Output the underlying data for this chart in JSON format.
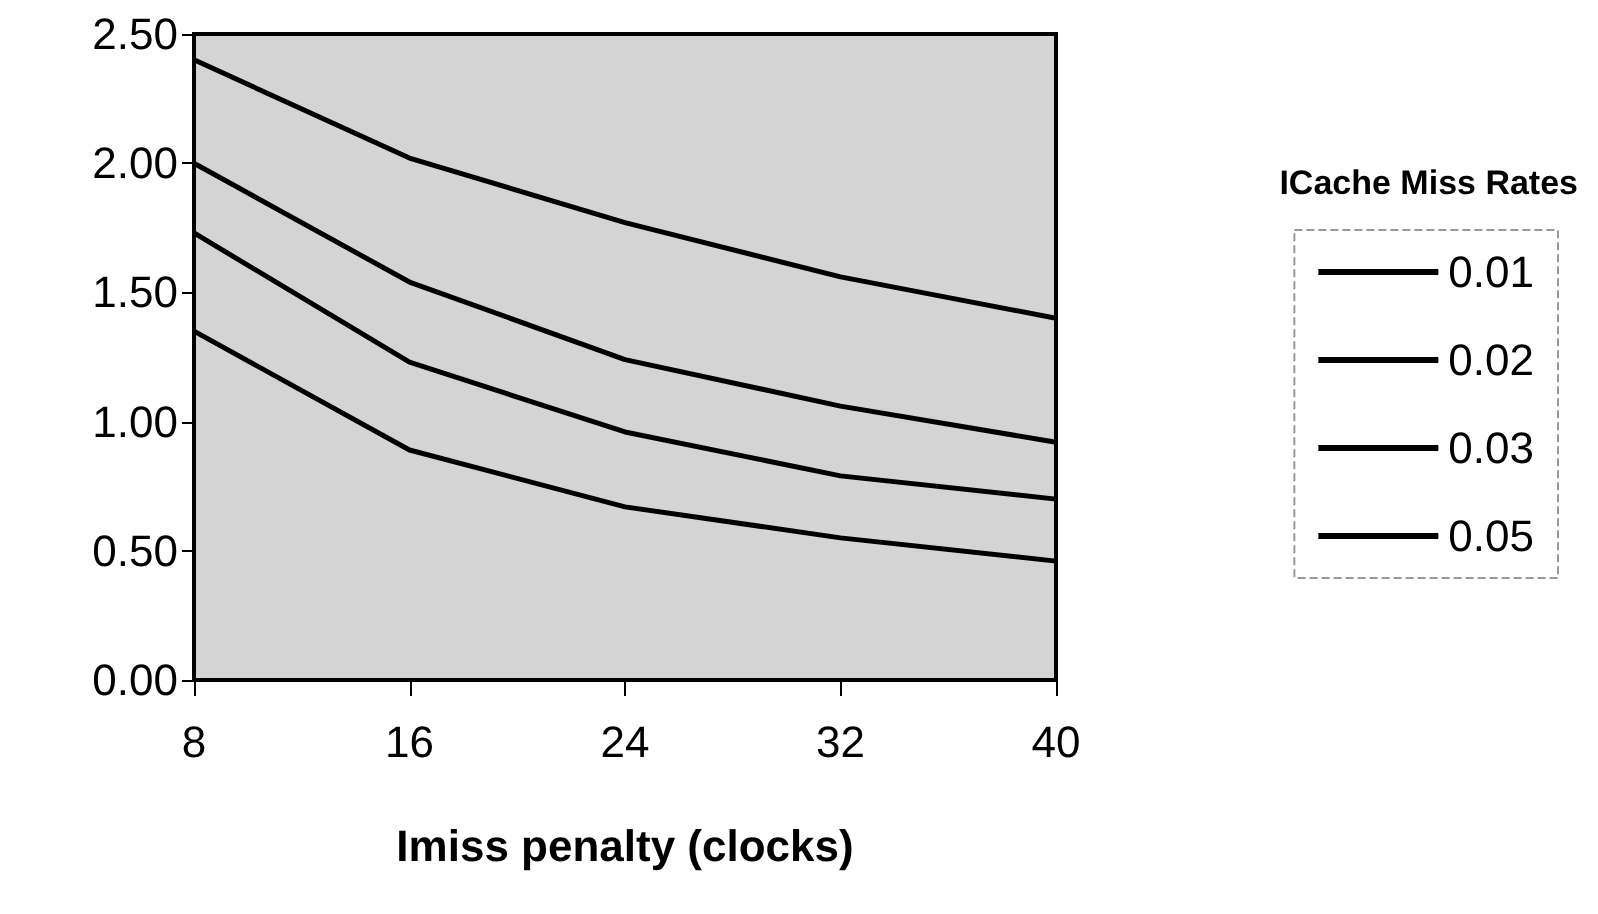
{
  "chart_data": {
    "type": "line",
    "xlabel": "Imiss penalty (clocks)",
    "legend_title": "ICache Miss Rates",
    "categories": [
      "8",
      "16",
      "24",
      "32",
      "40"
    ],
    "series": [
      {
        "name": "0.01",
        "color": "#000000",
        "values": [
          2.4,
          2.02,
          1.77,
          1.56,
          1.4
        ]
      },
      {
        "name": "0.02",
        "color": "#000000",
        "values": [
          2.0,
          1.54,
          1.24,
          1.06,
          0.92
        ]
      },
      {
        "name": "0.03",
        "color": "#000000",
        "values": [
          1.73,
          1.23,
          0.96,
          0.79,
          0.7
        ]
      },
      {
        "name": "0.05",
        "color": "#000000",
        "values": [
          1.35,
          0.89,
          0.67,
          0.55,
          0.46
        ]
      }
    ],
    "ylim": [
      0,
      2.5
    ],
    "yticks": [
      {
        "value": 0,
        "label": "0.00"
      },
      {
        "value": 0.5,
        "label": "0.50"
      },
      {
        "value": 1,
        "label": "1.00"
      },
      {
        "value": 1.5,
        "label": "1.50"
      },
      {
        "value": 2,
        "label": "2.00"
      },
      {
        "value": 2.5,
        "label": "2.50"
      }
    ],
    "grid": false,
    "legend": "right",
    "marker": "none",
    "line_style": "solid"
  }
}
